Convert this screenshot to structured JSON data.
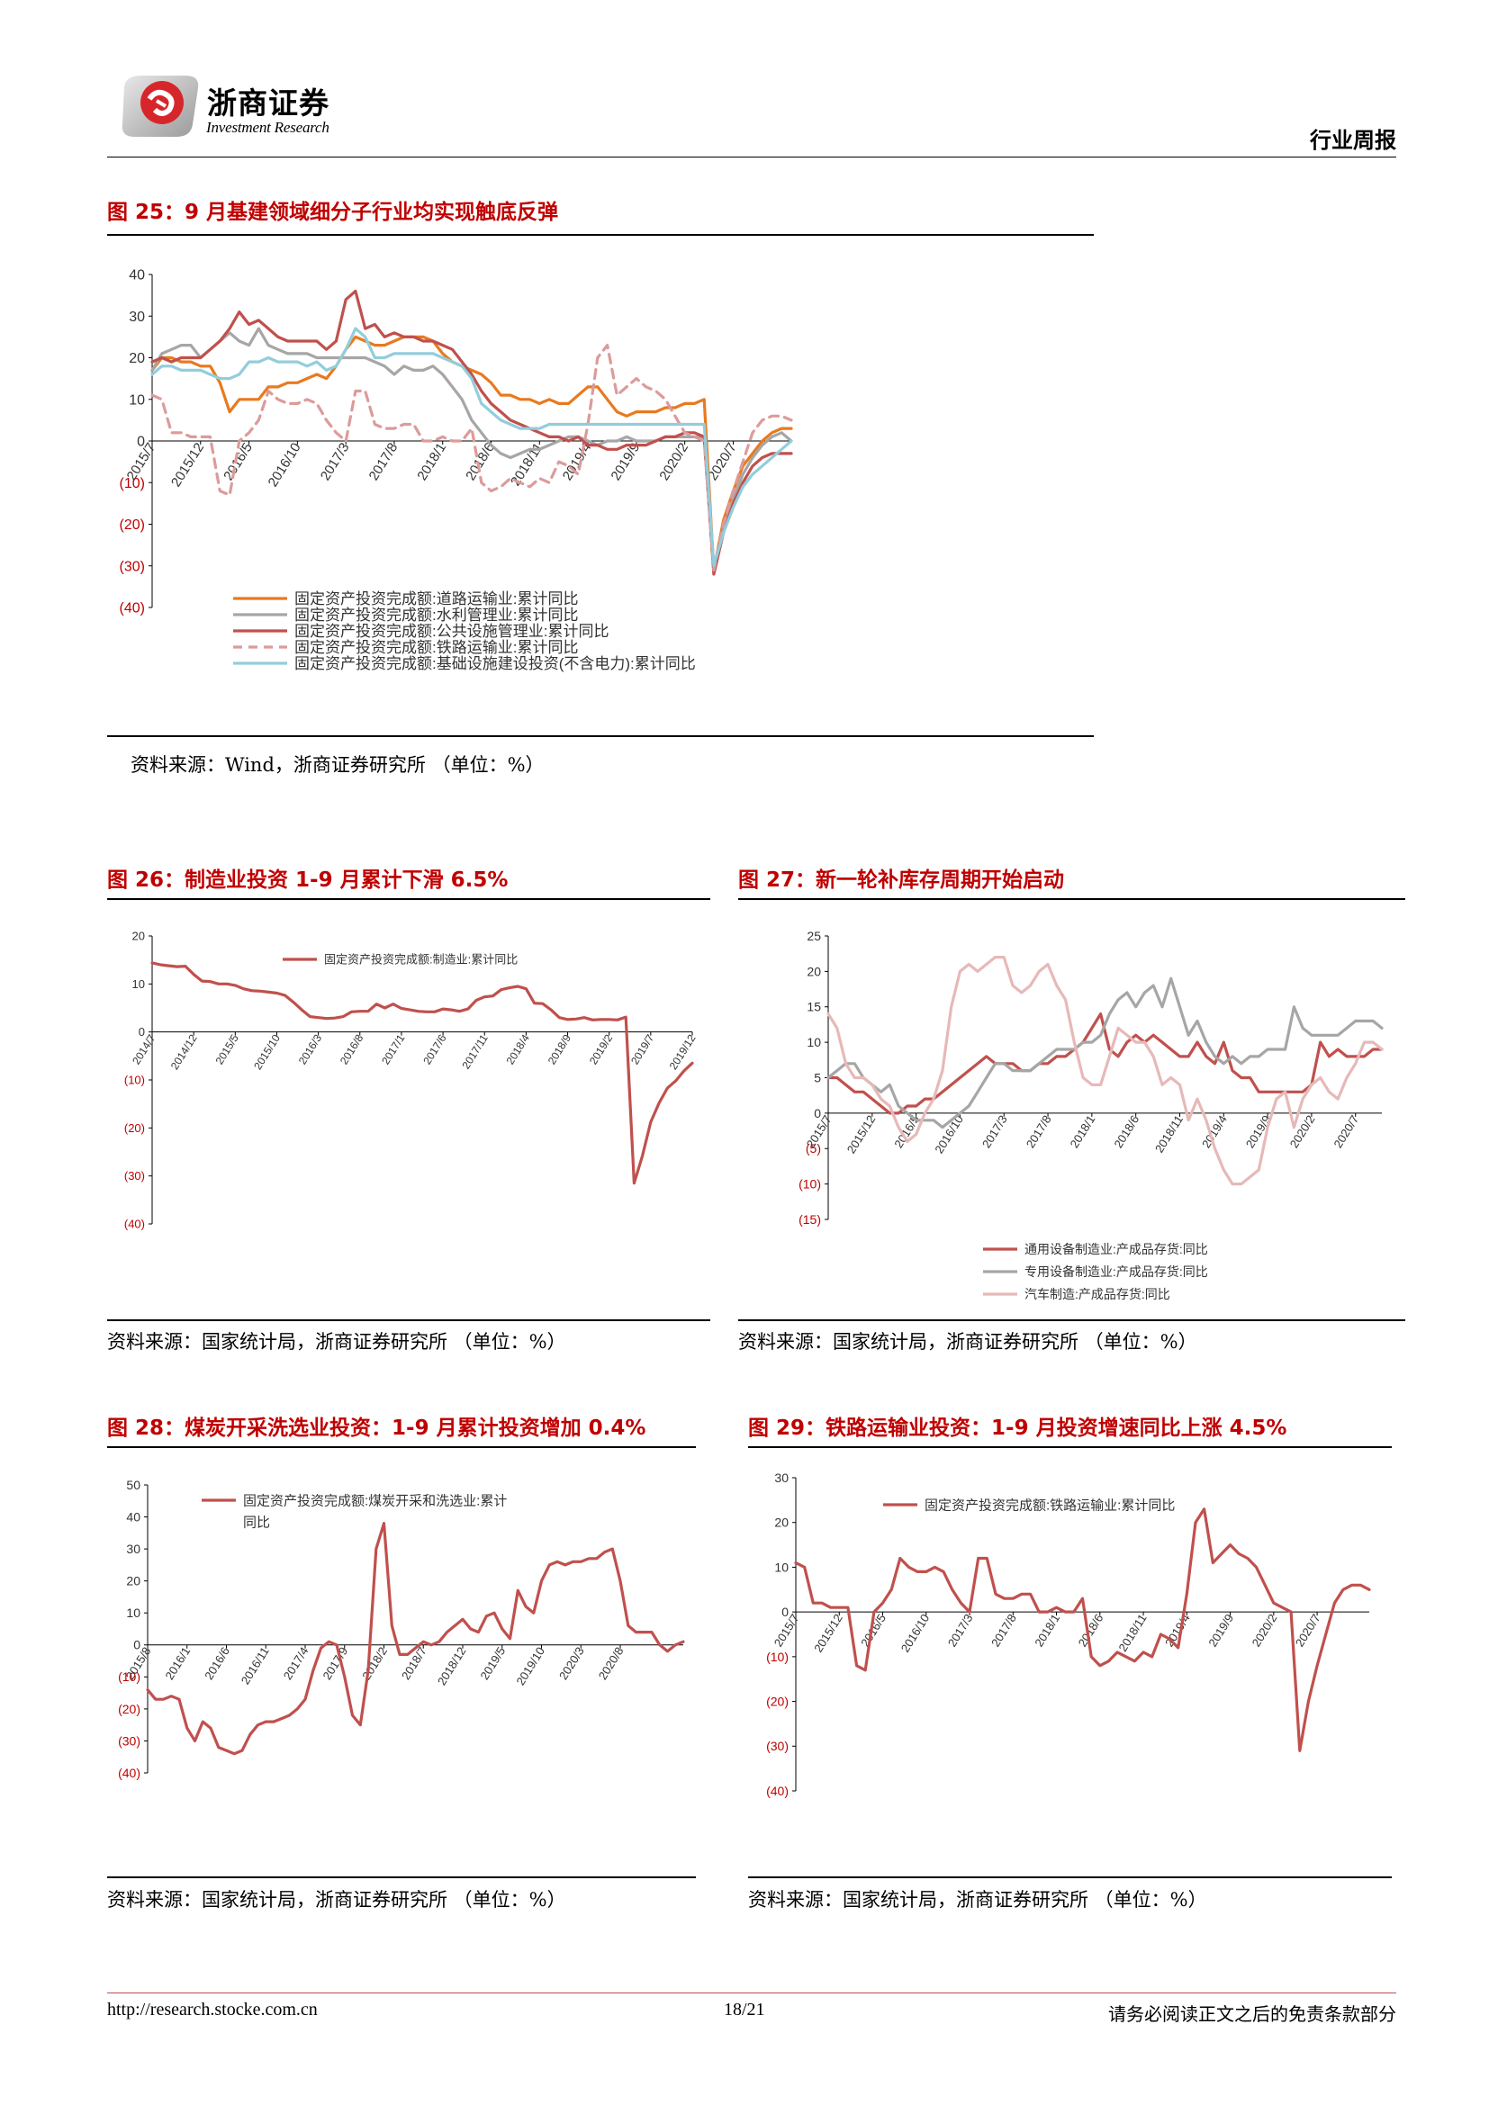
{
  "header": {
    "company": "浙商证券",
    "company_en": "Investment Research",
    "report_type": "行业周报"
  },
  "figures": [
    {
      "title": "图 25：9 月基建领域细分子行业均实现触底反弹",
      "source": "资料来源：Wind，浙商证券研究所   （单位：%）"
    },
    {
      "title": "图 26：制造业投资 1-9 月累计下滑 6.5%",
      "source": "资料来源：国家统计局，浙商证券研究所  （单位：%）"
    },
    {
      "title": "图 27：新一轮补库存周期开始启动",
      "source": "资料来源：国家统计局，浙商证券研究所  （单位：%）"
    },
    {
      "title": "图 28：煤炭开采洗选业投资：1-9 月累计投资增加 0.4%",
      "source": "资料来源：国家统计局，浙商证券研究所  （单位：%）"
    },
    {
      "title": "图 29：铁路运输业投资：1-9 月投资增速同比上涨 4.5%",
      "source": "资料来源：国家统计局，浙商证券研究所  （单位：%）"
    }
  ],
  "footer": {
    "url": "http://research.stocke.com.cn",
    "page": "18/21",
    "disclaimer": "请务必阅读正文之后的免责条款部分"
  },
  "chart_data": [
    {
      "type": "line",
      "ylim": [
        -40,
        40
      ],
      "yticks": [
        "40",
        "30",
        "20",
        "10",
        "0",
        "(10)",
        "(20)",
        "(30)",
        "(40)"
      ],
      "xticks": [
        "2015/7",
        "2015/12",
        "2016/5",
        "2016/10",
        "2017/3",
        "2017/8",
        "2018/1",
        "2018/6",
        "2018/11",
        "2019/4",
        "2019/9",
        "2020/2",
        "2020/7"
      ],
      "x_start": "2015/7",
      "legend": "bottom-inside",
      "series": [
        {
          "name": "固定资产投资完成额:道路运输业:累计同比",
          "color": "#e87a1e",
          "style": "solid",
          "values": [
            17,
            20,
            20,
            19,
            19,
            18,
            18,
            14,
            7,
            10,
            10,
            10,
            13,
            13,
            14,
            14,
            15,
            16,
            15,
            18,
            22,
            25,
            24,
            23,
            23,
            24,
            25,
            25,
            25,
            24,
            21,
            19,
            18,
            17,
            16,
            14,
            11,
            11,
            10,
            10,
            9,
            10,
            9,
            9,
            11,
            13,
            13,
            10,
            7,
            6,
            7,
            7,
            7,
            8,
            8,
            9,
            9,
            10,
            -31,
            -19,
            -12,
            -6,
            -3,
            0,
            2,
            3,
            3
          ]
        },
        {
          "name": "固定资产投资完成额:水利管理业:累计同比",
          "color": "#a6a6a6",
          "style": "solid",
          "values": [
            17,
            21,
            22,
            23,
            23,
            20,
            22,
            24,
            26,
            24,
            23,
            27,
            23,
            22,
            21,
            21,
            21,
            20,
            20,
            20,
            20,
            20,
            20,
            19,
            18,
            16,
            18,
            17,
            17,
            18,
            16,
            13,
            10,
            5,
            2,
            -1,
            -3,
            -4,
            -3,
            -2,
            -2,
            -1,
            0,
            1,
            1,
            0,
            -1,
            0,
            0,
            1,
            0,
            0,
            0,
            1,
            1,
            1,
            1,
            1,
            -31,
            -21,
            -14,
            -8,
            -4,
            -1,
            1,
            2,
            0
          ]
        },
        {
          "name": "固定资产投资完成额:公共设施管理业:累计同比",
          "color": "#c0504d",
          "style": "solid",
          "values": [
            19,
            20,
            19,
            20,
            20,
            20,
            22,
            24,
            27,
            31,
            28,
            29,
            27,
            25,
            24,
            24,
            24,
            24,
            22,
            24,
            34,
            36,
            27,
            28,
            25,
            26,
            25,
            25,
            24,
            24,
            23,
            22,
            19,
            16,
            12,
            9,
            7,
            5,
            4,
            3,
            2,
            1,
            1,
            0,
            1,
            -1,
            -1,
            -2,
            -2,
            -1,
            -1,
            -1,
            0,
            1,
            1,
            2,
            2,
            1,
            -32,
            -22,
            -15,
            -10,
            -6,
            -4,
            -3,
            -3,
            -3
          ]
        },
        {
          "name": "固定资产投资完成额:铁路运输业:累计同比",
          "color": "#dc9b9b",
          "style": "dashed",
          "values": [
            11,
            10,
            2,
            2,
            1,
            1,
            1,
            -12,
            -13,
            0,
            2,
            5,
            12,
            10,
            9,
            9,
            10,
            9,
            5,
            2,
            0,
            12,
            12,
            4,
            3,
            3,
            4,
            4,
            0,
            0,
            1,
            0,
            0,
            3,
            -10,
            -12,
            -11,
            -9,
            -10,
            -11,
            -9,
            -10,
            -5,
            -6,
            -8,
            4,
            20,
            23,
            11,
            13,
            15,
            13,
            12,
            10,
            6,
            2,
            1,
            0,
            -31,
            -20,
            -12,
            -5,
            2,
            5,
            6,
            6,
            5
          ]
        },
        {
          "name": "固定资产投资完成额:基础设施建设投资(不含电力):累计同比",
          "color": "#92cddc",
          "style": "solid",
          "values": [
            16,
            18,
            18,
            17,
            17,
            17,
            16,
            15,
            15,
            16,
            19,
            19,
            20,
            19,
            19,
            19,
            18,
            19,
            17,
            18,
            22,
            27,
            25,
            20,
            20,
            21,
            21,
            21,
            21,
            21,
            20,
            19,
            18,
            15,
            9,
            7,
            5,
            4,
            3,
            3,
            3,
            4,
            4,
            4,
            4,
            4,
            4,
            4,
            4,
            4,
            4,
            4,
            4,
            4,
            4,
            4,
            4,
            4,
            -30,
            -22,
            -16,
            -11,
            -8,
            -6,
            -4,
            -2,
            0
          ]
        }
      ]
    },
    {
      "type": "line",
      "ylim": [
        -40,
        20
      ],
      "yticks": [
        "20",
        "10",
        "0",
        "(10)",
        "(20)",
        "(30)",
        "(40)"
      ],
      "xticks": [
        "2014/7",
        "2014/12",
        "2015/5",
        "2015/10",
        "2016/3",
        "2016/8",
        "2017/1",
        "2017/6",
        "2017/11",
        "2018/4",
        "2018/9",
        "2019/2",
        "2019/7",
        "2019/12",
        "2020/5"
      ],
      "x_start": "2014/7",
      "legend": "top-left",
      "series": [
        {
          "name": "固定资产投资完成额:制造业:累计同比",
          "color": "#c0504d",
          "values": [
            14.4,
            14.0,
            13.8,
            13.6,
            13.7,
            12.0,
            10.6,
            10.5,
            10.0,
            10.0,
            9.7,
            9.0,
            8.6,
            8.5,
            8.3,
            8.1,
            7.6,
            6.2,
            4.6,
            3.2,
            3.0,
            2.8,
            2.9,
            3.2,
            4.2,
            4.3,
            4.3,
            5.8,
            5.0,
            5.8,
            4.9,
            4.6,
            4.3,
            4.2,
            4.2,
            4.8,
            4.6,
            4.3,
            4.8,
            6.6,
            7.3,
            7.5,
            8.8,
            9.2,
            9.5,
            9.0,
            6.0,
            5.9,
            4.6,
            3.0,
            2.6,
            2.7,
            3.0,
            2.5,
            2.6,
            2.6,
            2.5,
            3.1,
            -31.5,
            -25.8,
            -18.8,
            -14.8,
            -11.7,
            -10.2,
            -8.1,
            -6.5
          ]
        }
      ]
    },
    {
      "type": "line",
      "ylim": [
        -15,
        25
      ],
      "yticks": [
        "25",
        "20",
        "15",
        "10",
        "5",
        "0",
        "(5)",
        "(10)",
        "(15)"
      ],
      "xticks": [
        "2015/7",
        "2015/12",
        "2016/5",
        "2016/10",
        "2017/3",
        "2017/8",
        "2018/1",
        "2018/6",
        "2018/11",
        "2019/4",
        "2019/9",
        "2020/2",
        "2020/7"
      ],
      "x_start": "2015/7",
      "legend": "bottom-left",
      "series": [
        {
          "name": "通用设备制造业:产成品存货:同比",
          "color": "#c0504d",
          "values": [
            5,
            5,
            4,
            3,
            3,
            2,
            1,
            0,
            0,
            1,
            1,
            2,
            2,
            3,
            4,
            5,
            6,
            7,
            8,
            7,
            7,
            7,
            6,
            6,
            7,
            7,
            8,
            8,
            9,
            10,
            12,
            14,
            9,
            8,
            10,
            11,
            10,
            11,
            10,
            9,
            8,
            8,
            10,
            8,
            7,
            10,
            6,
            5,
            5,
            3,
            3,
            3,
            3,
            3,
            3,
            4,
            10,
            8,
            9,
            8,
            8,
            8,
            9,
            9
          ]
        },
        {
          "name": "专用设备制造业:产成品存货:同比",
          "color": "#a6a6a6",
          "values": [
            5,
            6,
            7,
            7,
            5,
            4,
            3,
            4,
            1,
            0,
            -1,
            -1,
            -1,
            -2,
            -1,
            0,
            1,
            3,
            5,
            7,
            7,
            6,
            6,
            6,
            7,
            8,
            9,
            9,
            9,
            10,
            10,
            11,
            14,
            16,
            17,
            15,
            17,
            18,
            15,
            19,
            15,
            11,
            13,
            10,
            8,
            7,
            8,
            7,
            8,
            8,
            9,
            9,
            9,
            15,
            12,
            11,
            11,
            11,
            11,
            12,
            13,
            13,
            13,
            12
          ]
        },
        {
          "name": "汽车制造:产成品存货:同比",
          "color": "#e6b9b8",
          "values": [
            14,
            12,
            7,
            5,
            5,
            4,
            2,
            1,
            -2,
            -4,
            -3,
            0,
            2,
            6,
            15,
            20,
            21,
            20,
            21,
            22,
            22,
            18,
            17,
            18,
            20,
            21,
            18,
            16,
            10,
            5,
            4,
            4,
            8,
            12,
            11,
            10,
            10,
            8,
            4,
            5,
            4,
            -1,
            2,
            -1,
            -5,
            -8,
            -10,
            -10,
            -9,
            -8,
            -2,
            2,
            3,
            -2,
            2,
            4,
            5,
            3,
            2,
            5,
            7,
            10,
            10,
            9
          ]
        }
      ]
    },
    {
      "type": "line",
      "ylim": [
        -40,
        50
      ],
      "yticks": [
        "50",
        "40",
        "30",
        "20",
        "10",
        "0",
        "(10)",
        "(20)",
        "(30)",
        "(40)"
      ],
      "xticks": [
        "2015/8",
        "2016/1",
        "2016/6",
        "2016/11",
        "2017/4",
        "2017/9",
        "2018/2",
        "2018/7",
        "2018/12",
        "2019/5",
        "2019/10",
        "2020/3",
        "2020/8"
      ],
      "x_start": "2015/8",
      "legend": "top-left",
      "series": [
        {
          "name": "固定资产投资完成额:煤炭开采和洗选业:累计同比",
          "color": "#c0504d",
          "values": [
            -14,
            -17,
            -17,
            -16,
            -17,
            -26,
            -30,
            -24,
            -26,
            -32,
            -33,
            -34,
            -33,
            -28,
            -25,
            -24,
            -24,
            -23,
            -22,
            -20,
            -17,
            -8,
            -1,
            1,
            0,
            -10,
            -22,
            -25,
            -8,
            30,
            38,
            6,
            -3,
            -3,
            -1,
            1,
            0,
            1,
            4,
            6,
            8,
            5,
            4,
            9,
            10,
            5,
            2,
            17,
            12,
            10,
            20,
            25,
            26,
            25,
            26,
            26,
            27,
            27,
            29,
            30,
            20,
            6,
            4,
            4,
            4,
            0,
            -2,
            0,
            1
          ]
        }
      ]
    },
    {
      "type": "line",
      "ylim": [
        -40,
        30
      ],
      "yticks": [
        "30",
        "20",
        "10",
        "0",
        "(10)",
        "(20)",
        "(30)",
        "(40)"
      ],
      "xticks": [
        "2015/7",
        "2015/12",
        "2016/5",
        "2016/10",
        "2017/3",
        "2017/8",
        "2018/1",
        "2018/6",
        "2018/11",
        "2019/4",
        "2019/9",
        "2020/2",
        "2020/7"
      ],
      "x_start": "2015/7",
      "legend": "top-center",
      "series": [
        {
          "name": "固定资产投资完成额:铁路运输业:累计同比",
          "color": "#c0504d",
          "values": [
            11,
            10,
            2,
            2,
            1,
            1,
            1,
            -12,
            -13,
            0,
            2,
            5,
            12,
            10,
            9,
            9,
            10,
            9,
            5,
            2,
            0,
            12,
            12,
            4,
            3,
            3,
            4,
            4,
            0,
            0,
            1,
            0,
            0,
            3,
            -10,
            -12,
            -11,
            -9,
            -10,
            -11,
            -9,
            -10,
            -5,
            -6,
            -8,
            4,
            20,
            23,
            11,
            13,
            15,
            13,
            12,
            10,
            6,
            2,
            1,
            0,
            -31,
            -20,
            -12,
            -5,
            2,
            5,
            6,
            6,
            5
          ]
        }
      ]
    }
  ]
}
